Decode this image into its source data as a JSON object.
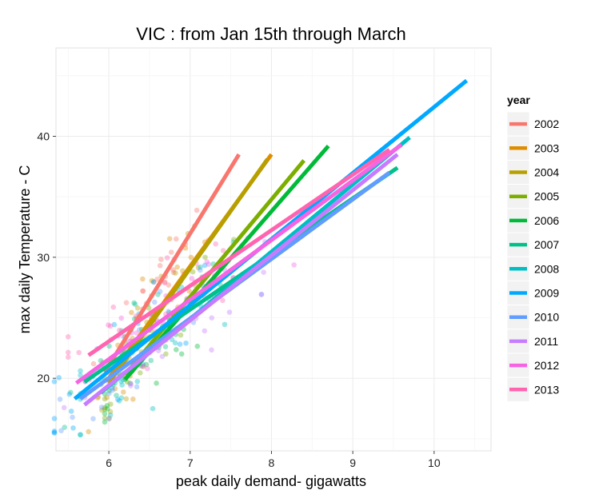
{
  "chart_data": {
    "type": "scatter",
    "title": "VIC : from  Jan 15th through March",
    "xlabel": "peak daily demand- gigawatts",
    "ylabel": "max daily Temperature - C",
    "xlim": [
      5.35,
      10.7
    ],
    "ylim": [
      14,
      47.3
    ],
    "xticks": [
      6,
      7,
      8,
      9,
      10
    ],
    "yticks": [
      20,
      30,
      40
    ],
    "grid": true,
    "legend": {
      "title": "year",
      "position": "right"
    },
    "series": [
      {
        "name": "2002",
        "color": "#F8766D",
        "line": [
          [
            5.95,
            20.5
          ],
          [
            7.6,
            38.5
          ]
        ]
      },
      {
        "name": "2003",
        "color": "#DE8C00",
        "line": [
          [
            6.0,
            20.0
          ],
          [
            8.0,
            38.5
          ]
        ]
      },
      {
        "name": "2004",
        "color": "#B79F00",
        "line": [
          [
            6.0,
            19.6
          ],
          [
            7.95,
            38.1
          ]
        ]
      },
      {
        "name": "2005",
        "color": "#7CAE00",
        "line": [
          [
            6.2,
            20.3
          ],
          [
            8.4,
            38.0
          ]
        ]
      },
      {
        "name": "2006",
        "color": "#00BA38",
        "line": [
          [
            6.2,
            19.9
          ],
          [
            8.7,
            39.2
          ]
        ]
      },
      {
        "name": "2007",
        "color": "#00C08B",
        "line": [
          [
            5.7,
            19.7
          ],
          [
            9.55,
            37.4
          ]
        ]
      },
      {
        "name": "2008",
        "color": "#00BFC4",
        "line": [
          [
            5.9,
            18.8
          ],
          [
            9.7,
            39.9
          ]
        ]
      },
      {
        "name": "2009",
        "color": "#00A9FF",
        "line": [
          [
            5.58,
            18.3
          ],
          [
            10.4,
            44.6
          ]
        ]
      },
      {
        "name": "2010",
        "color": "#619CFF",
        "line": [
          [
            5.65,
            18.3
          ],
          [
            9.45,
            37.0
          ]
        ]
      },
      {
        "name": "2011",
        "color": "#C77CFF",
        "line": [
          [
            5.7,
            17.8
          ],
          [
            9.55,
            38.5
          ]
        ]
      },
      {
        "name": "2012",
        "color": "#F564E3",
        "line": [
          [
            5.6,
            19.6
          ],
          [
            9.6,
            39.3
          ]
        ]
      },
      {
        "name": "2013",
        "color": "#FF64B0",
        "line": [
          [
            5.75,
            21.9
          ],
          [
            9.45,
            38.9
          ]
        ]
      }
    ]
  }
}
